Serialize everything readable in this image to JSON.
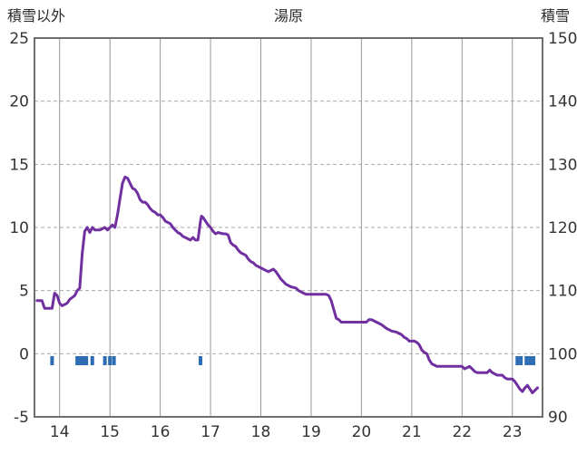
{
  "header": {
    "left_axis_title": "積雪以外",
    "title": "湯原",
    "right_axis_title": "積雪"
  },
  "chart_data": {
    "type": "line",
    "title": "湯原",
    "left_axis_label": "積雪以外",
    "right_axis_label": "積雪",
    "xlim": [
      13.5,
      23.6
    ],
    "ylim_left": [
      -5,
      25
    ],
    "ylim_right": [
      90,
      150
    ],
    "x_ticks": [
      14,
      15,
      16,
      17,
      18,
      19,
      20,
      21,
      22,
      23
    ],
    "left_ticks": [
      25,
      20,
      15,
      10,
      5,
      0,
      -5
    ],
    "right_ticks": [
      150,
      140,
      130,
      120,
      110,
      100,
      90
    ],
    "grid_y_dashed": [
      20,
      15,
      10,
      5,
      0
    ],
    "legend": "none",
    "grid": "on",
    "colors": {
      "line": "#7030a0",
      "marks": "#2e6db4",
      "grid_vertical": "#999999",
      "grid_horizontal": "#aaaaaa",
      "frame": "#6e6e6e",
      "text": "#333333"
    },
    "series": [
      {
        "color": "#7030a0",
        "points": [
          [
            13.55,
            4.2
          ],
          [
            13.65,
            4.2
          ],
          [
            13.7,
            3.6
          ],
          [
            13.85,
            3.6
          ],
          [
            13.9,
            4.8
          ],
          [
            13.95,
            4.6
          ],
          [
            14.0,
            4.0
          ],
          [
            14.05,
            3.8
          ],
          [
            14.15,
            4.0
          ],
          [
            14.2,
            4.3
          ],
          [
            14.3,
            4.6
          ],
          [
            14.35,
            5.0
          ],
          [
            14.4,
            5.2
          ],
          [
            14.45,
            8.0
          ],
          [
            14.5,
            9.7
          ],
          [
            14.55,
            10.0
          ],
          [
            14.6,
            9.6
          ],
          [
            14.65,
            10.0
          ],
          [
            14.7,
            9.8
          ],
          [
            14.8,
            9.8
          ],
          [
            14.9,
            10.0
          ],
          [
            14.95,
            9.8
          ],
          [
            15.0,
            10.0
          ],
          [
            15.05,
            10.2
          ],
          [
            15.1,
            10.0
          ],
          [
            15.15,
            11.0
          ],
          [
            15.2,
            12.3
          ],
          [
            15.25,
            13.5
          ],
          [
            15.3,
            14.0
          ],
          [
            15.35,
            13.9
          ],
          [
            15.4,
            13.5
          ],
          [
            15.45,
            13.1
          ],
          [
            15.5,
            13.0
          ],
          [
            15.55,
            12.7
          ],
          [
            15.6,
            12.2
          ],
          [
            15.65,
            12.0
          ],
          [
            15.7,
            12.0
          ],
          [
            15.75,
            11.8
          ],
          [
            15.8,
            11.5
          ],
          [
            15.85,
            11.3
          ],
          [
            15.9,
            11.2
          ],
          [
            15.95,
            11.0
          ],
          [
            16.0,
            11.0
          ],
          [
            16.05,
            10.8
          ],
          [
            16.1,
            10.5
          ],
          [
            16.15,
            10.4
          ],
          [
            16.2,
            10.3
          ],
          [
            16.25,
            10.0
          ],
          [
            16.3,
            9.8
          ],
          [
            16.35,
            9.6
          ],
          [
            16.4,
            9.5
          ],
          [
            16.45,
            9.3
          ],
          [
            16.5,
            9.2
          ],
          [
            16.55,
            9.1
          ],
          [
            16.6,
            9.0
          ],
          [
            16.65,
            9.2
          ],
          [
            16.7,
            9.0
          ],
          [
            16.75,
            9.0
          ],
          [
            16.8,
            10.5
          ],
          [
            16.82,
            10.9
          ],
          [
            16.85,
            10.8
          ],
          [
            16.9,
            10.5
          ],
          [
            16.95,
            10.2
          ],
          [
            17.0,
            10.0
          ],
          [
            17.05,
            9.7
          ],
          [
            17.1,
            9.5
          ],
          [
            17.15,
            9.6
          ],
          [
            17.25,
            9.5
          ],
          [
            17.3,
            9.5
          ],
          [
            17.35,
            9.4
          ],
          [
            17.4,
            8.8
          ],
          [
            17.45,
            8.6
          ],
          [
            17.5,
            8.5
          ],
          [
            17.55,
            8.2
          ],
          [
            17.6,
            8.0
          ],
          [
            17.65,
            7.9
          ],
          [
            17.7,
            7.8
          ],
          [
            17.75,
            7.5
          ],
          [
            17.8,
            7.3
          ],
          [
            17.85,
            7.2
          ],
          [
            17.9,
            7.0
          ],
          [
            17.95,
            6.9
          ],
          [
            18.0,
            6.8
          ],
          [
            18.1,
            6.6
          ],
          [
            18.15,
            6.5
          ],
          [
            18.2,
            6.6
          ],
          [
            18.25,
            6.7
          ],
          [
            18.3,
            6.5
          ],
          [
            18.35,
            6.2
          ],
          [
            18.4,
            5.9
          ],
          [
            18.45,
            5.7
          ],
          [
            18.5,
            5.5
          ],
          [
            18.55,
            5.4
          ],
          [
            18.6,
            5.3
          ],
          [
            18.7,
            5.2
          ],
          [
            18.75,
            5.0
          ],
          [
            18.85,
            4.8
          ],
          [
            18.9,
            4.7
          ],
          [
            19.0,
            4.7
          ],
          [
            19.1,
            4.7
          ],
          [
            19.2,
            4.7
          ],
          [
            19.3,
            4.7
          ],
          [
            19.35,
            4.6
          ],
          [
            19.4,
            4.2
          ],
          [
            19.45,
            3.5
          ],
          [
            19.5,
            2.8
          ],
          [
            19.55,
            2.7
          ],
          [
            19.6,
            2.5
          ],
          [
            19.7,
            2.5
          ],
          [
            19.8,
            2.5
          ],
          [
            19.9,
            2.5
          ],
          [
            20.0,
            2.5
          ],
          [
            20.1,
            2.5
          ],
          [
            20.15,
            2.7
          ],
          [
            20.2,
            2.7
          ],
          [
            20.25,
            2.6
          ],
          [
            20.3,
            2.5
          ],
          [
            20.35,
            2.4
          ],
          [
            20.4,
            2.3
          ],
          [
            20.5,
            2.0
          ],
          [
            20.55,
            1.9
          ],
          [
            20.6,
            1.8
          ],
          [
            20.7,
            1.7
          ],
          [
            20.75,
            1.6
          ],
          [
            20.8,
            1.5
          ],
          [
            20.85,
            1.3
          ],
          [
            20.9,
            1.2
          ],
          [
            20.95,
            1.0
          ],
          [
            21.05,
            1.0
          ],
          [
            21.1,
            0.9
          ],
          [
            21.15,
            0.7
          ],
          [
            21.2,
            0.3
          ],
          [
            21.25,
            0.1
          ],
          [
            21.3,
            0.0
          ],
          [
            21.35,
            -0.5
          ],
          [
            21.4,
            -0.8
          ],
          [
            21.45,
            -0.9
          ],
          [
            21.5,
            -1.0
          ],
          [
            21.6,
            -1.0
          ],
          [
            21.7,
            -1.0
          ],
          [
            21.8,
            -1.0
          ],
          [
            21.9,
            -1.0
          ],
          [
            22.0,
            -1.0
          ],
          [
            22.05,
            -1.2
          ],
          [
            22.1,
            -1.1
          ],
          [
            22.15,
            -1.0
          ],
          [
            22.2,
            -1.2
          ],
          [
            22.25,
            -1.4
          ],
          [
            22.3,
            -1.5
          ],
          [
            22.4,
            -1.5
          ],
          [
            22.5,
            -1.5
          ],
          [
            22.55,
            -1.3
          ],
          [
            22.6,
            -1.5
          ],
          [
            22.65,
            -1.6
          ],
          [
            22.7,
            -1.7
          ],
          [
            22.8,
            -1.7
          ],
          [
            22.85,
            -1.9
          ],
          [
            22.9,
            -2.0
          ],
          [
            23.0,
            -2.0
          ],
          [
            23.05,
            -2.2
          ],
          [
            23.1,
            -2.5
          ],
          [
            23.15,
            -2.8
          ],
          [
            23.2,
            -3.0
          ],
          [
            23.25,
            -2.7
          ],
          [
            23.3,
            -2.5
          ],
          [
            23.35,
            -2.8
          ],
          [
            23.4,
            -3.1
          ],
          [
            23.45,
            -2.9
          ],
          [
            23.5,
            -2.7
          ]
        ]
      }
    ],
    "event_marks": {
      "color": "#2e6db4",
      "y": -0.55,
      "x": [
        13.85,
        14.35,
        14.42,
        14.48,
        14.53,
        14.65,
        14.9,
        15.0,
        15.08,
        16.8,
        23.1,
        23.17,
        23.28,
        23.35,
        23.42
      ]
    }
  }
}
